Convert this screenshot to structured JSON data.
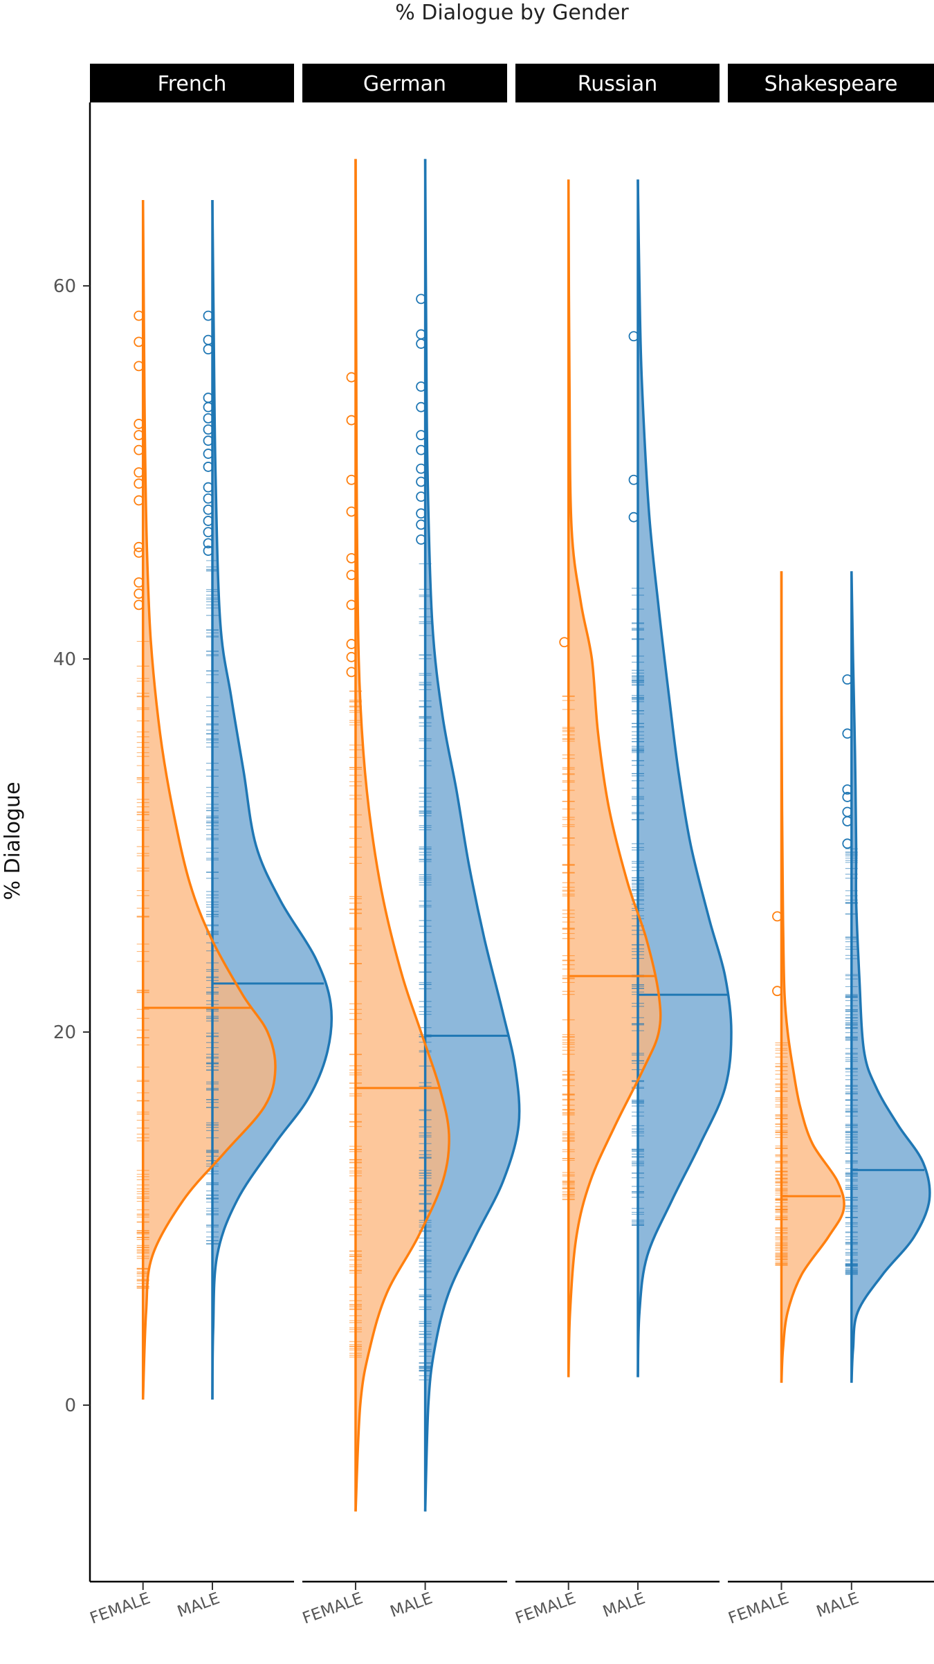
{
  "chart_data": {
    "type": "violin",
    "title": "% Dialogue by Gender",
    "xlabel": "",
    "ylabel": "% Dialogue",
    "ylim": [
      -9.5,
      70
    ],
    "yticks": [
      0,
      20,
      40,
      60
    ],
    "categories": [
      "FEMALE",
      "MALE"
    ],
    "colors": {
      "FEMALE": "#ff7f0e",
      "MALE": "#1f77b4"
    },
    "legend": "none",
    "grid": false,
    "panels": [
      {
        "name": "French",
        "FEMALE": {
          "range": [
            0.3,
            64.6
          ],
          "median": 21.3,
          "density": [
            [
              0.3,
              0
            ],
            [
              5,
              0.02
            ],
            [
              8,
              0.06
            ],
            [
              11,
              0.26
            ],
            [
              13.5,
              0.52
            ],
            [
              16,
              0.78
            ],
            [
              18,
              0.85
            ],
            [
              20,
              0.8
            ],
            [
              22,
              0.64
            ],
            [
              25,
              0.44
            ],
            [
              28,
              0.3
            ],
            [
              32,
              0.19
            ],
            [
              36,
              0.11
            ],
            [
              41,
              0.05
            ],
            [
              46,
              0.025
            ],
            [
              52,
              0.012
            ],
            [
              58,
              0.006
            ],
            [
              64.6,
              0
            ]
          ],
          "outliers": [
            42.9,
            43.5,
            44.1,
            45.7,
            46.0,
            48.5,
            49.4,
            50.0,
            51.2,
            52.0,
            52.6,
            55.7,
            57.0,
            58.4
          ],
          "rug_range": [
            6.2,
            41
          ]
        },
        "MALE": {
          "range": [
            0.3,
            64.6
          ],
          "median": 22.6,
          "density": [
            [
              0.3,
              0
            ],
            [
              4,
              0.005
            ],
            [
              8,
              0.03
            ],
            [
              11,
              0.16
            ],
            [
              14,
              0.4
            ],
            [
              16.5,
              0.62
            ],
            [
              19,
              0.74
            ],
            [
              21.5,
              0.76
            ],
            [
              24,
              0.66
            ],
            [
              27,
              0.44
            ],
            [
              30,
              0.28
            ],
            [
              34,
              0.2
            ],
            [
              38,
              0.12
            ],
            [
              42,
              0.05
            ],
            [
              50,
              0.02
            ],
            [
              58,
              0.008
            ],
            [
              64.6,
              0
            ]
          ],
          "outliers": [
            45.8,
            46.2,
            46.8,
            47.4,
            48.0,
            48.6,
            49.2,
            50.3,
            51.0,
            51.7,
            52.3,
            52.9,
            53.5,
            54.0,
            56.6,
            57.1,
            58.4
          ],
          "rug_range": [
            8.5,
            45.5
          ]
        }
      },
      {
        "name": "German",
        "FEMALE": {
          "range": [
            -5.7,
            66.8
          ],
          "median": 17.0,
          "density": [
            [
              -5.7,
              0
            ],
            [
              0,
              0.03
            ],
            [
              3,
              0.09
            ],
            [
              6,
              0.2
            ],
            [
              9,
              0.4
            ],
            [
              12,
              0.56
            ],
            [
              14.5,
              0.6
            ],
            [
              17,
              0.54
            ],
            [
              20,
              0.42
            ],
            [
              23,
              0.3
            ],
            [
              27,
              0.18
            ],
            [
              31,
              0.1
            ],
            [
              35,
              0.05
            ],
            [
              40,
              0.02
            ],
            [
              48,
              0.008
            ],
            [
              56,
              0.004
            ],
            [
              66.8,
              0
            ]
          ],
          "outliers": [
            39.3,
            40.1,
            40.8,
            42.9,
            44.5,
            45.4,
            47.9,
            49.6,
            52.8,
            55.1
          ],
          "rug_range": [
            2.5,
            38.5
          ]
        },
        "MALE": {
          "range": [
            -5.7,
            66.8
          ],
          "median": 19.8,
          "density": [
            [
              -5.7,
              0
            ],
            [
              0,
              0.02
            ],
            [
              3,
              0.06
            ],
            [
              6,
              0.15
            ],
            [
              9,
              0.32
            ],
            [
              12,
              0.5
            ],
            [
              15,
              0.6
            ],
            [
              18,
              0.58
            ],
            [
              21,
              0.5
            ],
            [
              25,
              0.38
            ],
            [
              29,
              0.28
            ],
            [
              33,
              0.2
            ],
            [
              37,
              0.11
            ],
            [
              42,
              0.045
            ],
            [
              50,
              0.015
            ],
            [
              58,
              0.006
            ],
            [
              66.8,
              0
            ]
          ],
          "outliers": [
            46.4,
            47.2,
            47.8,
            48.7,
            49.5,
            50.2,
            51.2,
            52.0,
            53.5,
            54.6,
            56.9,
            57.4,
            59.3
          ],
          "rug_range": [
            1.3,
            45.5
          ]
        }
      },
      {
        "name": "Russian",
        "FEMALE": {
          "range": [
            1.5,
            65.7
          ],
          "median": 23.0,
          "density": [
            [
              1.5,
              0
            ],
            [
              5,
              0.01
            ],
            [
              9,
              0.05
            ],
            [
              12,
              0.14
            ],
            [
              15,
              0.3
            ],
            [
              18,
              0.48
            ],
            [
              20,
              0.58
            ],
            [
              22,
              0.58
            ],
            [
              25,
              0.5
            ],
            [
              28,
              0.38
            ],
            [
              32,
              0.26
            ],
            [
              36,
              0.19
            ],
            [
              40,
              0.15
            ],
            [
              43,
              0.08
            ],
            [
              47,
              0.02
            ],
            [
              55,
              0.006
            ],
            [
              65.7,
              0
            ]
          ],
          "outliers": [
            40.9
          ],
          "rug_range": [
            11,
            38.5
          ]
        },
        "MALE": {
          "range": [
            1.5,
            65.7
          ],
          "median": 22.0,
          "density": [
            [
              1.5,
              0
            ],
            [
              5,
              0.01
            ],
            [
              8,
              0.06
            ],
            [
              11,
              0.22
            ],
            [
              14,
              0.4
            ],
            [
              17,
              0.56
            ],
            [
              20,
              0.6
            ],
            [
              23,
              0.56
            ],
            [
              26,
              0.46
            ],
            [
              30,
              0.34
            ],
            [
              34,
              0.26
            ],
            [
              38,
              0.2
            ],
            [
              43,
              0.13
            ],
            [
              48,
              0.07
            ],
            [
              55,
              0.025
            ],
            [
              60,
              0.01
            ],
            [
              65.7,
              0
            ]
          ],
          "outliers": [
            47.6,
            49.6,
            57.3
          ],
          "rug_range": [
            9.5,
            44
          ]
        }
      },
      {
        "name": "Shakespeare",
        "FEMALE": {
          "range": [
            1.2,
            44.7
          ],
          "median": 11.2,
          "density": [
            [
              1.2,
              0
            ],
            [
              3,
              0.01
            ],
            [
              5,
              0.04
            ],
            [
              7,
              0.13
            ],
            [
              9,
              0.3
            ],
            [
              10.5,
              0.4
            ],
            [
              12,
              0.36
            ],
            [
              14,
              0.2
            ],
            [
              16,
              0.12
            ],
            [
              18,
              0.075
            ],
            [
              20,
              0.04
            ],
            [
              22,
              0.02
            ],
            [
              25,
              0.012
            ],
            [
              28,
              0.008
            ],
            [
              32,
              0.004
            ],
            [
              38,
              0.001
            ],
            [
              44.7,
              0
            ]
          ],
          "outliers": [
            22.2,
            26.2
          ],
          "rug_range": [
            7.5,
            19.5
          ]
        },
        "MALE": {
          "range": [
            1.2,
            44.7
          ],
          "median": 12.6,
          "density": [
            [
              1.2,
              0
            ],
            [
              3,
              0.01
            ],
            [
              5,
              0.04
            ],
            [
              7,
              0.2
            ],
            [
              9,
              0.4
            ],
            [
              11,
              0.5
            ],
            [
              13,
              0.46
            ],
            [
              15,
              0.3
            ],
            [
              17,
              0.16
            ],
            [
              19,
              0.08
            ],
            [
              23,
              0.05
            ],
            [
              27,
              0.03
            ],
            [
              30,
              0.03
            ],
            [
              35,
              0.022
            ],
            [
              40,
              0.01
            ],
            [
              44.7,
              0
            ]
          ],
          "outliers": [
            30.1,
            31.3,
            31.8,
            32.6,
            33.0,
            36.0,
            38.9
          ],
          "rug_range": [
            7,
            30
          ]
        }
      }
    ]
  }
}
